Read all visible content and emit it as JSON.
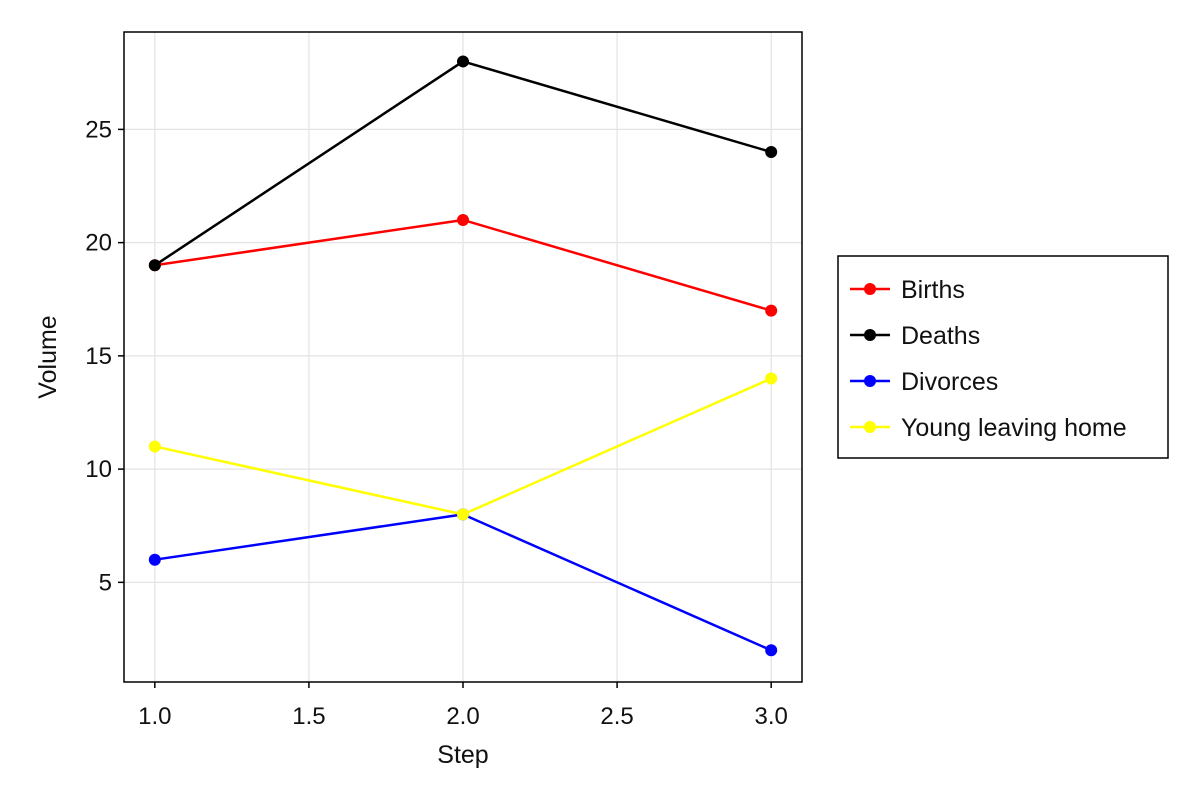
{
  "chart_data": {
    "type": "line",
    "xlabel": "Step",
    "ylabel": "Volume",
    "x": [
      1.0,
      2.0,
      3.0
    ],
    "xlim": [
      0.9,
      3.1
    ],
    "ylim": [
      0.6,
      29.3
    ],
    "xticks": [
      1.0,
      1.5,
      2.0,
      2.5,
      3.0
    ],
    "xtick_labels": [
      "1.0",
      "1.5",
      "2.0",
      "2.5",
      "3.0"
    ],
    "yticks": [
      5,
      10,
      15,
      20,
      25
    ],
    "ytick_labels": [
      "5",
      "10",
      "15",
      "20",
      "25"
    ],
    "grid": true,
    "legend_position": "outside-right",
    "series": [
      {
        "name": "Births",
        "color": "#ff0000",
        "values": [
          19,
          21,
          17
        ]
      },
      {
        "name": "Deaths",
        "color": "#000000",
        "values": [
          19,
          28,
          24
        ]
      },
      {
        "name": "Divorces",
        "color": "#0000ff",
        "values": [
          6,
          8,
          2
        ]
      },
      {
        "name": "Young leaving home",
        "color": "#ffff00",
        "values": [
          11,
          8,
          14
        ]
      }
    ]
  }
}
